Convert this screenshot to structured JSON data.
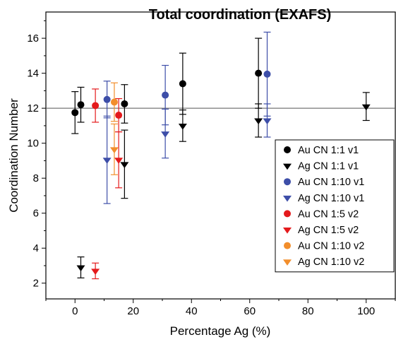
{
  "chart_data": {
    "type": "scatter",
    "title": "Total coordination (EXAFS)",
    "xlabel": "Percentage Ag (%)",
    "ylabel": "Coordination Number",
    "xlim": [
      -10,
      110
    ],
    "ylim": [
      1.1,
      17.5
    ],
    "xticks": [
      0,
      20,
      40,
      60,
      80,
      100
    ],
    "yticks": [
      2,
      4,
      6,
      8,
      10,
      12,
      14,
      16
    ],
    "grid": false,
    "legend_position": "bottom-right",
    "reference_line": {
      "y": 12,
      "color": "#555555"
    },
    "series": [
      {
        "name": "Au CN 1:1 v1",
        "marker": "circle",
        "color": "#000000",
        "points": [
          {
            "x": 0,
            "y": 11.75,
            "err": 1.2
          },
          {
            "x": 2,
            "y": 12.2,
            "err": 1.0
          },
          {
            "x": 17,
            "y": 12.25,
            "err": 1.1
          },
          {
            "x": 37,
            "y": 13.4,
            "err": 1.75
          },
          {
            "x": 63,
            "y": 14.0,
            "err": 2.0
          }
        ]
      },
      {
        "name": "Ag CN 1:1 v1",
        "marker": "triangle-down",
        "color": "#000000",
        "points": [
          {
            "x": 2,
            "y": 2.9,
            "err": 0.6
          },
          {
            "x": 17,
            "y": 8.8,
            "err": 1.95
          },
          {
            "x": 37,
            "y": 11.0,
            "err": 0.9
          },
          {
            "x": 63,
            "y": 11.3,
            "err": 0.95
          },
          {
            "x": 100,
            "y": 12.1,
            "err": 0.8
          }
        ]
      },
      {
        "name": "Au CN 1:10 v1",
        "marker": "circle",
        "color": "#3d4ea8",
        "points": [
          {
            "x": 11,
            "y": 12.5,
            "err": 1.05
          },
          {
            "x": 31,
            "y": 12.75,
            "err": 1.7
          },
          {
            "x": 66,
            "y": 13.95,
            "err": 2.4
          }
        ]
      },
      {
        "name": "Ag CN 1:10 v1",
        "marker": "triangle-down",
        "color": "#3d4ea8",
        "points": [
          {
            "x": 11,
            "y": 9.05,
            "err": 2.5
          },
          {
            "x": 31,
            "y": 10.55,
            "err": 1.4
          },
          {
            "x": 66,
            "y": 11.3,
            "err": 0.95
          }
        ]
      },
      {
        "name": "Au CN 1:5 v2",
        "marker": "circle",
        "color": "#e41a1c",
        "points": [
          {
            "x": 7,
            "y": 12.15,
            "err": 0.95
          },
          {
            "x": 15,
            "y": 11.6,
            "err": 0.95
          }
        ]
      },
      {
        "name": "Ag CN 1:5 v2",
        "marker": "triangle-down",
        "color": "#e41a1c",
        "points": [
          {
            "x": 7,
            "y": 2.7,
            "err": 0.45
          },
          {
            "x": 15,
            "y": 9.05,
            "err": 1.6
          }
        ]
      },
      {
        "name": "Au CN 1:10 v2",
        "marker": "circle",
        "color": "#f28e2b",
        "points": [
          {
            "x": 13.5,
            "y": 12.35,
            "err": 1.1
          }
        ]
      },
      {
        "name": "Ag CN 1:10 v2",
        "marker": "triangle-down",
        "color": "#f28e2b",
        "points": [
          {
            "x": 13.5,
            "y": 9.65,
            "err": 1.45
          }
        ]
      }
    ]
  }
}
